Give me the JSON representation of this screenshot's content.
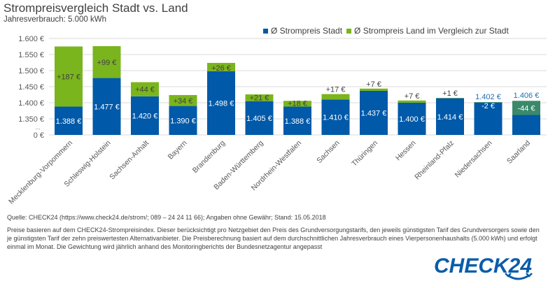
{
  "header": {
    "title": "Strompreisvergleich Stadt vs. Land",
    "subtitle": "Jahresverbrauch: 5.000 kWh"
  },
  "legend": [
    {
      "label": "Ø Strompreis Stadt",
      "color": "#0059A9"
    },
    {
      "label": "Ø Strompreis Land im Vergleich zur Stadt",
      "color": "#7AB51D"
    }
  ],
  "colors": {
    "stadt": "#0059A9",
    "land_plus": "#7AB51D",
    "land_minus": "#3A8A6A",
    "grid": "#D9D9D9",
    "axis_text": "#595959",
    "label_dark": "#404040",
    "label_light": "#FFFFFF",
    "total_label": "#1F6FB5"
  },
  "chart_data": {
    "type": "bar",
    "stacked": true,
    "title": "Strompreisvergleich Stadt vs. Land",
    "subtitle": "Jahresverbrauch: 5.000 kWh",
    "xlabel": "",
    "ylabel": "",
    "ylim": [
      1300,
      1600
    ],
    "axis_break": true,
    "y_ticks": [
      "0 €",
      "1.350 €",
      "1.400 €",
      "1.450 €",
      "1.500 €",
      "1.550 €",
      "1.600 €"
    ],
    "y_tick_values": [
      0,
      1350,
      1400,
      1450,
      1500,
      1550,
      1600
    ],
    "y_break_label": "...",
    "grid": true,
    "legend_position": "top-right",
    "categories": [
      "Mecklenburg-Vorpommern",
      "Schleswig-Holstein",
      "Sachsen-Anhalt",
      "Bayern",
      "Brandenburg",
      "Baden-Württemberg",
      "Nordrhein-Westfalen",
      "Sachsen",
      "Thüringen",
      "Hessen",
      "Rheinland-Pfalz",
      "Niedersachsen",
      "Saarland"
    ],
    "series": [
      {
        "name": "Ø Strompreis Stadt",
        "values": [
          1388,
          1477,
          1420,
          1390,
          1498,
          1405,
          1388,
          1410,
          1437,
          1400,
          1414,
          1402,
          1406
        ]
      },
      {
        "name": "Ø Strompreis Land im Vergleich zur Stadt",
        "values": [
          187,
          99,
          44,
          34,
          26,
          21,
          18,
          17,
          7,
          7,
          1,
          -2,
          -44
        ]
      }
    ],
    "stadt_labels": [
      "1.388 €",
      "1.477 €",
      "1.420 €",
      "1.390 €",
      "1.498 €",
      "1.405 €",
      "1.388 €",
      "1.410 €",
      "1.437 €",
      "1.400 €",
      "1.414 €",
      "",
      ""
    ],
    "diff_labels": [
      "+187 €",
      "+99 €",
      "+44 €",
      "+34 €",
      "+26 €",
      "+21 €",
      "+18 €",
      "+17 €",
      "+7 €",
      "+7 €",
      "+1 €",
      "-2 €",
      "-44 €"
    ],
    "top_labels": [
      "",
      "",
      "",
      "",
      "",
      "",
      "",
      "",
      "",
      "",
      "",
      "1.402 €",
      "1.406 €"
    ]
  },
  "footer": {
    "source": "Quelle:  CHECK24  (https://www.check24.de/strom/;  089 – 24 24 11 66); Angaben ohne Gewähr;  Stand:  15.05.2018",
    "note": "Preise basieren auf dem CHECK24-Strompreisindex.  Dieser berücksichtigt pro Netzgebiet  den Preis des Grundversorgungstarifs,  den jeweils  günstigsten  Tarif des Grundversorgers sowie den je günstigsten  Tarif der zehn  preiswertesten  Alternativanbieter.  Die Preisberechnung basiert auf dem durchschnittlichen Jahresverbrauch eines Vierpersonenhaushalts (5.000 kWh) und erfolgt einmal im Monat.  Die Gewichtung  wird jährlich anhand des Monitoringberichts  der Bundesnetzagentur  angepasst",
    "logo_text": "CHECK24"
  }
}
